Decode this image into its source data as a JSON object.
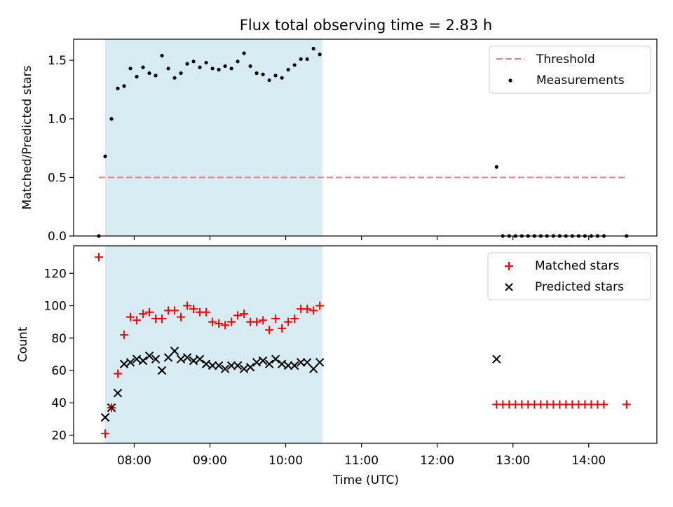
{
  "chart_data": [
    {
      "type": "scatter",
      "title": "Flux total observing time = 2.83 h",
      "ylabel": "Matched/Predicted stars",
      "xlabel": "",
      "ylim": [
        0,
        1.68
      ],
      "xlim": [
        "07:12",
        "14:54"
      ],
      "yticks": [
        "0.0",
        "0.5",
        "1.0",
        "1.5"
      ],
      "ytick_values": [
        0,
        0.5,
        1.0,
        1.5
      ],
      "x_tick_values": [
        "08:00",
        "09:00",
        "10:00",
        "11:00",
        "12:00",
        "13:00",
        "14:00"
      ],
      "shaded_span": [
        "07:37",
        "10:29"
      ],
      "legend_position": "upper right",
      "legend": [
        "Threshold",
        "Measurements"
      ],
      "threshold": {
        "name": "Threshold",
        "y": 0.5,
        "x": [
          "07:32",
          "14:30"
        ],
        "color": "#f08080"
      },
      "measurements": {
        "name": "Measurements",
        "color": "#000000",
        "points": [
          [
            "07:32",
            0.0
          ],
          [
            "07:37",
            0.68
          ],
          [
            "07:42",
            1.0
          ],
          [
            "07:47",
            1.26
          ],
          [
            "07:52",
            1.28
          ],
          [
            "07:57",
            1.43
          ],
          [
            "08:02",
            1.36
          ],
          [
            "08:07",
            1.44
          ],
          [
            "08:12",
            1.39
          ],
          [
            "08:17",
            1.37
          ],
          [
            "08:22",
            1.54
          ],
          [
            "08:27",
            1.43
          ],
          [
            "08:32",
            1.35
          ],
          [
            "08:37",
            1.39
          ],
          [
            "08:42",
            1.47
          ],
          [
            "08:47",
            1.49
          ],
          [
            "08:52",
            1.44
          ],
          [
            "08:57",
            1.48
          ],
          [
            "09:02",
            1.43
          ],
          [
            "09:07",
            1.42
          ],
          [
            "09:12",
            1.45
          ],
          [
            "09:17",
            1.43
          ],
          [
            "09:22",
            1.49
          ],
          [
            "09:27",
            1.56
          ],
          [
            "09:32",
            1.45
          ],
          [
            "09:37",
            1.39
          ],
          [
            "09:42",
            1.38
          ],
          [
            "09:47",
            1.33
          ],
          [
            "09:52",
            1.37
          ],
          [
            "09:57",
            1.35
          ],
          [
            "10:02",
            1.42
          ],
          [
            "10:07",
            1.46
          ],
          [
            "10:12",
            1.51
          ],
          [
            "10:17",
            1.51
          ],
          [
            "10:22",
            1.6
          ],
          [
            "10:27",
            1.55
          ],
          [
            "12:47",
            0.59
          ],
          [
            "12:52",
            0.0
          ],
          [
            "12:57",
            0.0
          ],
          [
            "13:02",
            0.0
          ],
          [
            "13:07",
            0.0
          ],
          [
            "13:12",
            0.0
          ],
          [
            "13:17",
            0.0
          ],
          [
            "13:22",
            0.0
          ],
          [
            "13:27",
            0.0
          ],
          [
            "13:32",
            0.0
          ],
          [
            "13:37",
            0.0
          ],
          [
            "13:42",
            0.0
          ],
          [
            "13:47",
            0.0
          ],
          [
            "13:52",
            0.0
          ],
          [
            "13:57",
            0.0
          ],
          [
            "14:02",
            0.0
          ],
          [
            "14:07",
            0.0
          ],
          [
            "14:12",
            0.0
          ],
          [
            "14:30",
            0.0
          ]
        ]
      }
    },
    {
      "type": "scatter",
      "title": "",
      "ylabel": "Count",
      "xlabel": "Time (UTC)",
      "ylim": [
        15,
        137
      ],
      "xlim": [
        "07:12",
        "14:54"
      ],
      "yticks": [
        "20",
        "40",
        "60",
        "80",
        "100",
        "120"
      ],
      "ytick_values": [
        20,
        40,
        60,
        80,
        100,
        120
      ],
      "xticks": [
        "08:00",
        "09:00",
        "10:00",
        "11:00",
        "12:00",
        "13:00",
        "14:00"
      ],
      "x_tick_values": [
        "08:00",
        "09:00",
        "10:00",
        "11:00",
        "12:00",
        "13:00",
        "14:00"
      ],
      "shaded_span": [
        "07:37",
        "10:29"
      ],
      "legend_position": "upper right",
      "legend": [
        "Matched stars",
        "Predicted stars"
      ],
      "series": [
        {
          "name": "Matched stars",
          "marker": "plus",
          "color": "#ff0000",
          "points": [
            [
              "07:32",
              130
            ],
            [
              "07:37",
              21
            ],
            [
              "07:42",
              37
            ],
            [
              "07:47",
              58
            ],
            [
              "07:52",
              82
            ],
            [
              "07:57",
              93
            ],
            [
              "08:02",
              91
            ],
            [
              "08:07",
              95
            ],
            [
              "08:12",
              96
            ],
            [
              "08:17",
              92
            ],
            [
              "08:22",
              92
            ],
            [
              "08:27",
              97
            ],
            [
              "08:32",
              97
            ],
            [
              "08:37",
              93
            ],
            [
              "08:42",
              100
            ],
            [
              "08:47",
              98
            ],
            [
              "08:52",
              96
            ],
            [
              "08:57",
              96
            ],
            [
              "09:02",
              90
            ],
            [
              "09:07",
              89
            ],
            [
              "09:12",
              88
            ],
            [
              "09:17",
              90
            ],
            [
              "09:22",
              94
            ],
            [
              "09:27",
              95
            ],
            [
              "09:32",
              90
            ],
            [
              "09:37",
              90
            ],
            [
              "09:42",
              91
            ],
            [
              "09:47",
              85
            ],
            [
              "09:52",
              92
            ],
            [
              "09:57",
              86
            ],
            [
              "10:02",
              90
            ],
            [
              "10:07",
              92
            ],
            [
              "10:12",
              98
            ],
            [
              "10:17",
              98
            ],
            [
              "10:22",
              97
            ],
            [
              "10:27",
              100
            ],
            [
              "12:47",
              39
            ],
            [
              "12:52",
              39
            ],
            [
              "12:57",
              39
            ],
            [
              "13:02",
              39
            ],
            [
              "13:07",
              39
            ],
            [
              "13:12",
              39
            ],
            [
              "13:17",
              39
            ],
            [
              "13:22",
              39
            ],
            [
              "13:27",
              39
            ],
            [
              "13:32",
              39
            ],
            [
              "13:37",
              39
            ],
            [
              "13:42",
              39
            ],
            [
              "13:47",
              39
            ],
            [
              "13:52",
              39
            ],
            [
              "13:57",
              39
            ],
            [
              "14:02",
              39
            ],
            [
              "14:07",
              39
            ],
            [
              "14:12",
              39
            ],
            [
              "14:30",
              39
            ]
          ]
        },
        {
          "name": "Predicted stars",
          "marker": "x",
          "color": "#000000",
          "points": [
            [
              "07:37",
              31
            ],
            [
              "07:42",
              37
            ],
            [
              "07:47",
              46
            ],
            [
              "07:52",
              64
            ],
            [
              "07:57",
              65
            ],
            [
              "08:02",
              67
            ],
            [
              "08:07",
              66
            ],
            [
              "08:12",
              69
            ],
            [
              "08:17",
              67
            ],
            [
              "08:22",
              60
            ],
            [
              "08:27",
              68
            ],
            [
              "08:32",
              72
            ],
            [
              "08:37",
              67
            ],
            [
              "08:42",
              68
            ],
            [
              "08:47",
              66
            ],
            [
              "08:52",
              67
            ],
            [
              "08:57",
              64
            ],
            [
              "09:02",
              63
            ],
            [
              "09:07",
              63
            ],
            [
              "09:12",
              61
            ],
            [
              "09:17",
              63
            ],
            [
              "09:22",
              63
            ],
            [
              "09:27",
              61
            ],
            [
              "09:32",
              62
            ],
            [
              "09:37",
              65
            ],
            [
              "09:42",
              66
            ],
            [
              "09:47",
              64
            ],
            [
              "09:52",
              67
            ],
            [
              "09:57",
              64
            ],
            [
              "10:02",
              63
            ],
            [
              "10:07",
              63
            ],
            [
              "10:12",
              65
            ],
            [
              "10:17",
              65
            ],
            [
              "10:22",
              61
            ],
            [
              "10:27",
              65
            ],
            [
              "12:47",
              67
            ]
          ]
        }
      ]
    }
  ]
}
